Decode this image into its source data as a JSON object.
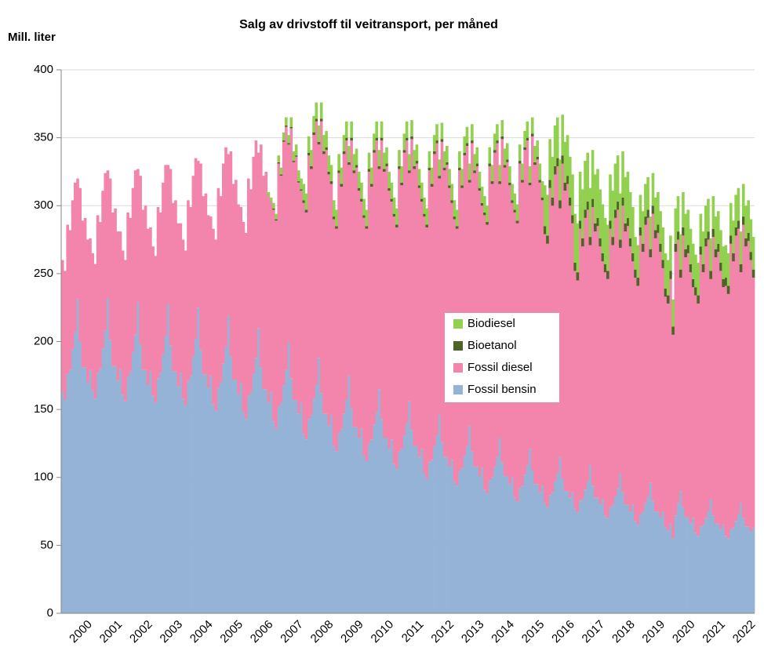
{
  "chart_data": {
    "type": "stacked_bar",
    "title": "Salg av drivstoff til veitransport,  per måned",
    "y_label": "Mill. liter",
    "ylim": [
      0,
      400
    ],
    "yticks": [
      0,
      50,
      100,
      150,
      200,
      250,
      300,
      350,
      400
    ],
    "grid": true,
    "legend": "center",
    "categories": [
      null,
      null,
      null,
      null,
      null,
      null,
      "2000",
      null,
      null,
      null,
      null,
      null,
      null,
      null,
      null,
      null,
      null,
      null,
      "2001",
      null,
      null,
      null,
      null,
      null,
      null,
      null,
      null,
      null,
      null,
      null,
      "2002",
      null,
      null,
      null,
      null,
      null,
      null,
      null,
      null,
      null,
      null,
      null,
      "2003",
      null,
      null,
      null,
      null,
      null,
      null,
      null,
      null,
      null,
      null,
      null,
      "2004",
      null,
      null,
      null,
      null,
      null,
      null,
      null,
      null,
      null,
      null,
      null,
      "2005",
      null,
      null,
      null,
      null,
      null,
      null,
      null,
      null,
      null,
      null,
      null,
      "2006",
      null,
      null,
      null,
      null,
      null,
      null,
      null,
      null,
      null,
      null,
      null,
      "2007",
      null,
      null,
      null,
      null,
      null,
      null,
      null,
      null,
      null,
      null,
      null,
      "2008",
      null,
      null,
      null,
      null,
      null,
      null,
      null,
      null,
      null,
      null,
      null,
      "2009",
      null,
      null,
      null,
      null,
      null,
      null,
      null,
      null,
      null,
      null,
      null,
      "2010",
      null,
      null,
      null,
      null,
      null,
      null,
      null,
      null,
      null,
      null,
      null,
      "2011",
      null,
      null,
      null,
      null,
      null,
      null,
      null,
      null,
      null,
      null,
      null,
      "2012",
      null,
      null,
      null,
      null,
      null,
      null,
      null,
      null,
      null,
      null,
      null,
      "2013",
      null,
      null,
      null,
      null,
      null,
      null,
      null,
      null,
      null,
      null,
      null,
      "2014",
      null,
      null,
      null,
      null,
      null,
      null,
      null,
      null,
      null,
      null,
      null,
      "2015",
      null,
      null,
      null,
      null,
      null,
      null,
      null,
      null,
      null,
      null,
      null,
      "2016",
      null,
      null,
      null,
      null,
      null,
      null,
      null,
      null,
      null,
      null,
      null,
      "2017",
      null,
      null,
      null,
      null,
      null,
      null,
      null,
      null,
      null,
      null,
      null,
      "2018",
      null,
      null,
      null,
      null,
      null,
      null,
      null,
      null,
      null,
      null,
      null,
      "2019",
      null,
      null,
      null,
      null,
      null,
      null,
      null,
      null,
      null,
      null,
      null,
      "2020",
      null,
      null,
      null,
      null,
      null,
      null,
      null,
      null,
      null,
      null,
      null,
      "2021",
      null,
      null,
      null,
      null,
      null,
      null,
      null,
      null,
      null,
      null,
      null,
      "2022",
      null,
      null,
      null,
      null,
      null
    ],
    "series": [
      {
        "name": "Fossil bensin",
        "color": "#95b3d7",
        "values": [
          163,
          157,
          176,
          179,
          194,
          207,
          231,
          200,
          181,
          181,
          170,
          179,
          164,
          158,
          177,
          180,
          195,
          208,
          232,
          201,
          182,
          182,
          171,
          180,
          161,
          156,
          174,
          178,
          192,
          205,
          229,
          198,
          179,
          179,
          168,
          178,
          160,
          155,
          173,
          177,
          191,
          204,
          228,
          197,
          178,
          178,
          167,
          177,
          158,
          153,
          171,
          175,
          189,
          202,
          225,
          194,
          176,
          176,
          166,
          175,
          154,
          149,
          166,
          170,
          184,
          196,
          219,
          189,
          172,
          172,
          161,
          170,
          148,
          143,
          160,
          163,
          176,
          188,
          210,
          181,
          165,
          165,
          155,
          163,
          141,
          136,
          152,
          155,
          168,
          179,
          200,
          173,
          157,
          157,
          147,
          155,
          132,
          128,
          143,
          146,
          158,
          168,
          188,
          162,
          147,
          147,
          138,
          146,
          123,
          119,
          133,
          136,
          147,
          157,
          175,
          151,
          137,
          137,
          129,
          136,
          116,
          112,
          125,
          128,
          139,
          148,
          165,
          143,
          129,
          129,
          121,
          128,
          110,
          106,
          119,
          121,
          131,
          140,
          156,
          135,
          123,
          123,
          115,
          121,
          103,
          99,
          111,
          113,
          123,
          131,
          146,
          126,
          115,
          115,
          108,
          113,
          97,
          94,
          105,
          107,
          116,
          123,
          138,
          119,
          108,
          108,
          101,
          107,
          91,
          88,
          98,
          100,
          108,
          115,
          129,
          111,
          101,
          101,
          95,
          100,
          85,
          82,
          92,
          94,
          102,
          109,
          121,
          105,
          95,
          95,
          89,
          94,
          81,
          78,
          87,
          89,
          97,
          103,
          115,
          99,
          90,
          90,
          85,
          89,
          77,
          74,
          83,
          84,
          91,
          97,
          109,
          94,
          85,
          85,
          80,
          84,
          72,
          70,
          78,
          80,
          86,
          92,
          103,
          89,
          80,
          80,
          75,
          80,
          68,
          65,
          73,
          75,
          81,
          86,
          96,
          83,
          75,
          75,
          71,
          75,
          63,
          61,
          66,
          55,
          72,
          81,
          90,
          78,
          71,
          71,
          66,
          70,
          59,
          57,
          64,
          65,
          70,
          75,
          84,
          72,
          66,
          66,
          62,
          65,
          57,
          55,
          62,
          63,
          68,
          73,
          81,
          70,
          64,
          64,
          60,
          63
        ]
      },
      {
        "name": "Fossil diesel",
        "color": "#f385ad",
        "values": [
          97,
          95,
          110,
          103,
          110,
          110,
          89,
          113,
          108,
          110,
          105,
          97,
          101,
          99,
          116,
          108,
          116,
          116,
          94,
          119,
          113,
          116,
          110,
          101,
          106,
          104,
          121,
          113,
          121,
          121,
          98,
          124,
          118,
          121,
          115,
          106,
          110,
          108,
          126,
          118,
          126,
          126,
          102,
          130,
          124,
          126,
          120,
          110,
          117,
          114,
          133,
          124,
          133,
          133,
          108,
          137,
          131,
          133,
          127,
          117,
          129,
          126,
          147,
          137,
          147,
          147,
          119,
          151,
          144,
          147,
          140,
          129,
          140,
          137,
          160,
          149,
          160,
          160,
          129,
          164,
          157,
          160,
          152,
          140,
          156,
          153,
          179,
          167,
          179,
          179,
          145,
          184,
          175,
          179,
          170,
          156,
          170,
          167,
          194,
          181,
          194,
          194,
          157,
          200,
          191,
          194,
          185,
          170,
          167,
          164,
          191,
          178,
          191,
          191,
          155,
          197,
          187,
          191,
          182,
          167,
          175,
          171,
          200,
          186,
          200,
          200,
          162,
          205,
          196,
          200,
          190,
          175,
          182,
          178,
          208,
          194,
          208,
          208,
          168,
          214,
          204,
          208,
          198,
          182,
          189,
          185,
          215,
          201,
          215,
          215,
          174,
          221,
          211,
          215,
          205,
          189,
          193,
          189,
          221,
          206,
          221,
          221,
          179,
          227,
          216,
          221,
          210,
          193,
          202,
          198,
          231,
          216,
          231,
          231,
          187,
          238,
          227,
          231,
          220,
          202,
          210,
          205,
          239,
          223,
          239,
          239,
          194,
          246,
          235,
          239,
          228,
          210,
          198,
          194,
          226,
          211,
          226,
          226,
          183,
          232,
          221,
          226,
          215,
          198,
          175,
          171,
          200,
          186,
          200,
          200,
          162,
          205,
          196,
          200,
          190,
          175,
          179,
          176,
          205,
          191,
          205,
          205,
          166,
          211,
          201,
          205,
          195,
          179,
          179,
          176,
          205,
          191,
          205,
          205,
          166,
          211,
          201,
          205,
          195,
          179,
          170,
          167,
          180,
          150,
          194,
          194,
          157,
          200,
          191,
          194,
          185,
          170,
          175,
          171,
          200,
          186,
          200,
          200,
          162,
          205,
          196,
          200,
          190,
          175,
          184,
          180,
          210,
          196,
          210,
          210,
          170,
          216,
          206,
          210,
          200,
          184
        ]
      },
      {
        "name": "Bioetanol",
        "color": "#4f6228",
        "values": [
          0,
          0,
          0,
          0,
          0,
          0,
          0,
          0,
          0,
          0,
          0,
          0,
          0,
          0,
          0,
          0,
          0,
          0,
          0,
          0,
          0,
          0,
          0,
          0,
          0,
          0,
          0,
          0,
          0,
          0,
          0,
          0,
          0,
          0,
          0,
          0,
          0,
          0,
          0,
          0,
          0,
          0,
          0,
          0,
          0,
          0,
          0,
          0,
          0,
          0,
          0,
          0,
          0,
          0,
          0,
          0,
          0,
          0,
          0,
          0,
          0,
          0,
          0,
          0,
          0,
          0,
          0,
          0,
          0,
          0,
          0,
          0,
          0,
          0,
          0,
          0,
          0,
          0,
          0,
          0,
          0,
          0,
          0,
          0,
          1,
          1,
          1,
          1,
          1,
          1,
          1,
          1,
          1,
          1,
          1,
          1,
          2,
          2,
          2,
          2,
          2,
          2,
          2,
          2,
          2,
          2,
          2,
          2,
          2,
          2,
          2,
          2,
          2,
          2,
          2,
          2,
          2,
          2,
          2,
          2,
          2,
          2,
          2,
          2,
          2,
          2,
          2,
          2,
          2,
          2,
          2,
          2,
          2,
          2,
          2,
          2,
          2,
          2,
          2,
          2,
          2,
          2,
          2,
          2,
          2,
          2,
          2,
          2,
          2,
          2,
          2,
          2,
          2,
          2,
          2,
          2,
          2,
          2,
          2,
          2,
          2,
          2,
          2,
          2,
          2,
          2,
          2,
          2,
          2,
          2,
          2,
          2,
          2,
          2,
          2,
          2,
          2,
          2,
          2,
          2,
          2,
          2,
          2,
          2,
          2,
          2,
          2,
          2,
          2,
          2,
          2,
          2,
          6,
          6,
          6,
          6,
          6,
          6,
          6,
          6,
          6,
          6,
          6,
          6,
          6,
          6,
          6,
          6,
          6,
          6,
          6,
          6,
          6,
          6,
          6,
          6,
          6,
          6,
          6,
          6,
          6,
          6,
          6,
          6,
          6,
          6,
          6,
          6,
          6,
          6,
          6,
          6,
          6,
          6,
          6,
          6,
          6,
          6,
          6,
          6,
          6,
          6,
          6,
          6,
          6,
          6,
          6,
          6,
          6,
          6,
          6,
          6,
          6,
          6,
          6,
          6,
          6,
          6,
          6,
          6,
          6,
          6,
          6,
          6,
          6,
          6,
          6,
          6,
          6,
          6,
          6,
          6,
          6,
          6,
          6,
          6
        ]
      },
      {
        "name": "Biodiesel",
        "color": "#92d050",
        "values": [
          0,
          0,
          0,
          0,
          0,
          0,
          0,
          0,
          0,
          0,
          0,
          0,
          0,
          0,
          0,
          0,
          0,
          0,
          0,
          0,
          0,
          0,
          0,
          0,
          0,
          0,
          0,
          0,
          0,
          0,
          0,
          0,
          0,
          0,
          0,
          0,
          0,
          0,
          0,
          0,
          0,
          0,
          0,
          0,
          0,
          0,
          0,
          0,
          0,
          0,
          0,
          0,
          0,
          0,
          0,
          0,
          0,
          0,
          0,
          0,
          0,
          0,
          0,
          0,
          0,
          0,
          0,
          0,
          0,
          0,
          0,
          0,
          0,
          0,
          0,
          0,
          0,
          0,
          0,
          0,
          0,
          0,
          3,
          3,
          4,
          4,
          5,
          5,
          6,
          6,
          6,
          7,
          7,
          8,
          8,
          8,
          12,
          12,
          12,
          12,
          12,
          12,
          12,
          12,
          12,
          12,
          12,
          12,
          12,
          12,
          12,
          12,
          12,
          12,
          12,
          12,
          12,
          12,
          12,
          12,
          12,
          12,
          12,
          12,
          12,
          12,
          12,
          12,
          12,
          12,
          12,
          12,
          12,
          12,
          12,
          12,
          12,
          12,
          12,
          12,
          12,
          12,
          12,
          12,
          12,
          12,
          12,
          12,
          12,
          12,
          12,
          12,
          12,
          12,
          12,
          12,
          12,
          12,
          12,
          12,
          12,
          12,
          12,
          12,
          12,
          12,
          12,
          12,
          12,
          12,
          12,
          12,
          12,
          12,
          12,
          12,
          12,
          12,
          12,
          12,
          12,
          12,
          12,
          12,
          12,
          12,
          12,
          12,
          12,
          12,
          12,
          12,
          30,
          30,
          30,
          30,
          30,
          30,
          30,
          30,
          30,
          30,
          30,
          30,
          36,
          36,
          36,
          36,
          36,
          36,
          36,
          36,
          36,
          36,
          36,
          36,
          34,
          34,
          34,
          34,
          34,
          34,
          34,
          34,
          34,
          34,
          34,
          34,
          24,
          24,
          24,
          24,
          24,
          24,
          24,
          24,
          24,
          24,
          24,
          24,
          26,
          26,
          26,
          20,
          26,
          26,
          26,
          26,
          26,
          26,
          26,
          26,
          24,
          24,
          24,
          24,
          24,
          24,
          24,
          24,
          24,
          24,
          24,
          24,
          24,
          24,
          24,
          24,
          24,
          24,
          24,
          24,
          24,
          24,
          24,
          24
        ]
      }
    ]
  }
}
